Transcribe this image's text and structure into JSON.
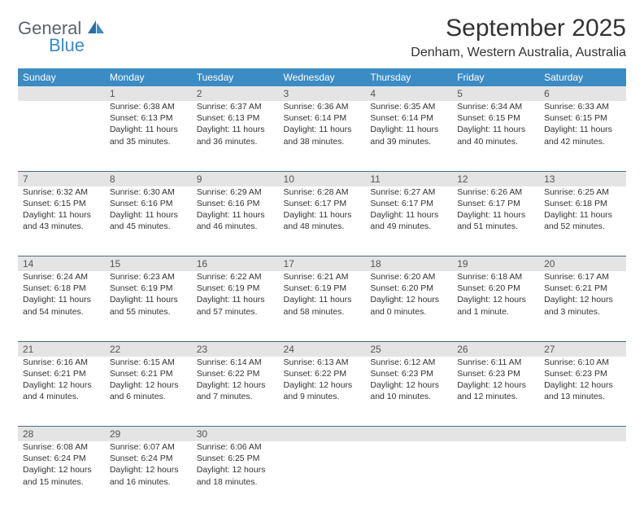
{
  "logo": {
    "line1": "General",
    "line2": "Blue"
  },
  "title": "September 2025",
  "location": "Denham, Western Australia, Australia",
  "dow": [
    "Sunday",
    "Monday",
    "Tuesday",
    "Wednesday",
    "Thursday",
    "Friday",
    "Saturday"
  ],
  "colors": {
    "header_bg": "#3b8bc4",
    "header_text": "#ffffff",
    "daynum_bg": "#e4e4e4",
    "rule": "#4a6a8a",
    "body_text": "#333333",
    "logo_gray": "#5a6570",
    "logo_blue": "#3b8bc4"
  },
  "weeks": [
    [
      {
        "n": "",
        "l1": "",
        "l2": "",
        "l3": "",
        "l4": ""
      },
      {
        "n": "1",
        "l1": "Sunrise: 6:38 AM",
        "l2": "Sunset: 6:13 PM",
        "l3": "Daylight: 11 hours",
        "l4": "and 35 minutes."
      },
      {
        "n": "2",
        "l1": "Sunrise: 6:37 AM",
        "l2": "Sunset: 6:13 PM",
        "l3": "Daylight: 11 hours",
        "l4": "and 36 minutes."
      },
      {
        "n": "3",
        "l1": "Sunrise: 6:36 AM",
        "l2": "Sunset: 6:14 PM",
        "l3": "Daylight: 11 hours",
        "l4": "and 38 minutes."
      },
      {
        "n": "4",
        "l1": "Sunrise: 6:35 AM",
        "l2": "Sunset: 6:14 PM",
        "l3": "Daylight: 11 hours",
        "l4": "and 39 minutes."
      },
      {
        "n": "5",
        "l1": "Sunrise: 6:34 AM",
        "l2": "Sunset: 6:15 PM",
        "l3": "Daylight: 11 hours",
        "l4": "and 40 minutes."
      },
      {
        "n": "6",
        "l1": "Sunrise: 6:33 AM",
        "l2": "Sunset: 6:15 PM",
        "l3": "Daylight: 11 hours",
        "l4": "and 42 minutes."
      }
    ],
    [
      {
        "n": "7",
        "l1": "Sunrise: 6:32 AM",
        "l2": "Sunset: 6:15 PM",
        "l3": "Daylight: 11 hours",
        "l4": "and 43 minutes."
      },
      {
        "n": "8",
        "l1": "Sunrise: 6:30 AM",
        "l2": "Sunset: 6:16 PM",
        "l3": "Daylight: 11 hours",
        "l4": "and 45 minutes."
      },
      {
        "n": "9",
        "l1": "Sunrise: 6:29 AM",
        "l2": "Sunset: 6:16 PM",
        "l3": "Daylight: 11 hours",
        "l4": "and 46 minutes."
      },
      {
        "n": "10",
        "l1": "Sunrise: 6:28 AM",
        "l2": "Sunset: 6:17 PM",
        "l3": "Daylight: 11 hours",
        "l4": "and 48 minutes."
      },
      {
        "n": "11",
        "l1": "Sunrise: 6:27 AM",
        "l2": "Sunset: 6:17 PM",
        "l3": "Daylight: 11 hours",
        "l4": "and 49 minutes."
      },
      {
        "n": "12",
        "l1": "Sunrise: 6:26 AM",
        "l2": "Sunset: 6:17 PM",
        "l3": "Daylight: 11 hours",
        "l4": "and 51 minutes."
      },
      {
        "n": "13",
        "l1": "Sunrise: 6:25 AM",
        "l2": "Sunset: 6:18 PM",
        "l3": "Daylight: 11 hours",
        "l4": "and 52 minutes."
      }
    ],
    [
      {
        "n": "14",
        "l1": "Sunrise: 6:24 AM",
        "l2": "Sunset: 6:18 PM",
        "l3": "Daylight: 11 hours",
        "l4": "and 54 minutes."
      },
      {
        "n": "15",
        "l1": "Sunrise: 6:23 AM",
        "l2": "Sunset: 6:19 PM",
        "l3": "Daylight: 11 hours",
        "l4": "and 55 minutes."
      },
      {
        "n": "16",
        "l1": "Sunrise: 6:22 AM",
        "l2": "Sunset: 6:19 PM",
        "l3": "Daylight: 11 hours",
        "l4": "and 57 minutes."
      },
      {
        "n": "17",
        "l1": "Sunrise: 6:21 AM",
        "l2": "Sunset: 6:19 PM",
        "l3": "Daylight: 11 hours",
        "l4": "and 58 minutes."
      },
      {
        "n": "18",
        "l1": "Sunrise: 6:20 AM",
        "l2": "Sunset: 6:20 PM",
        "l3": "Daylight: 12 hours",
        "l4": "and 0 minutes."
      },
      {
        "n": "19",
        "l1": "Sunrise: 6:18 AM",
        "l2": "Sunset: 6:20 PM",
        "l3": "Daylight: 12 hours",
        "l4": "and 1 minute."
      },
      {
        "n": "20",
        "l1": "Sunrise: 6:17 AM",
        "l2": "Sunset: 6:21 PM",
        "l3": "Daylight: 12 hours",
        "l4": "and 3 minutes."
      }
    ],
    [
      {
        "n": "21",
        "l1": "Sunrise: 6:16 AM",
        "l2": "Sunset: 6:21 PM",
        "l3": "Daylight: 12 hours",
        "l4": "and 4 minutes."
      },
      {
        "n": "22",
        "l1": "Sunrise: 6:15 AM",
        "l2": "Sunset: 6:21 PM",
        "l3": "Daylight: 12 hours",
        "l4": "and 6 minutes."
      },
      {
        "n": "23",
        "l1": "Sunrise: 6:14 AM",
        "l2": "Sunset: 6:22 PM",
        "l3": "Daylight: 12 hours",
        "l4": "and 7 minutes."
      },
      {
        "n": "24",
        "l1": "Sunrise: 6:13 AM",
        "l2": "Sunset: 6:22 PM",
        "l3": "Daylight: 12 hours",
        "l4": "and 9 minutes."
      },
      {
        "n": "25",
        "l1": "Sunrise: 6:12 AM",
        "l2": "Sunset: 6:23 PM",
        "l3": "Daylight: 12 hours",
        "l4": "and 10 minutes."
      },
      {
        "n": "26",
        "l1": "Sunrise: 6:11 AM",
        "l2": "Sunset: 6:23 PM",
        "l3": "Daylight: 12 hours",
        "l4": "and 12 minutes."
      },
      {
        "n": "27",
        "l1": "Sunrise: 6:10 AM",
        "l2": "Sunset: 6:23 PM",
        "l3": "Daylight: 12 hours",
        "l4": "and 13 minutes."
      }
    ],
    [
      {
        "n": "28",
        "l1": "Sunrise: 6:08 AM",
        "l2": "Sunset: 6:24 PM",
        "l3": "Daylight: 12 hours",
        "l4": "and 15 minutes."
      },
      {
        "n": "29",
        "l1": "Sunrise: 6:07 AM",
        "l2": "Sunset: 6:24 PM",
        "l3": "Daylight: 12 hours",
        "l4": "and 16 minutes."
      },
      {
        "n": "30",
        "l1": "Sunrise: 6:06 AM",
        "l2": "Sunset: 6:25 PM",
        "l3": "Daylight: 12 hours",
        "l4": "and 18 minutes."
      },
      {
        "n": "",
        "l1": "",
        "l2": "",
        "l3": "",
        "l4": ""
      },
      {
        "n": "",
        "l1": "",
        "l2": "",
        "l3": "",
        "l4": ""
      },
      {
        "n": "",
        "l1": "",
        "l2": "",
        "l3": "",
        "l4": ""
      },
      {
        "n": "",
        "l1": "",
        "l2": "",
        "l3": "",
        "l4": ""
      }
    ]
  ]
}
